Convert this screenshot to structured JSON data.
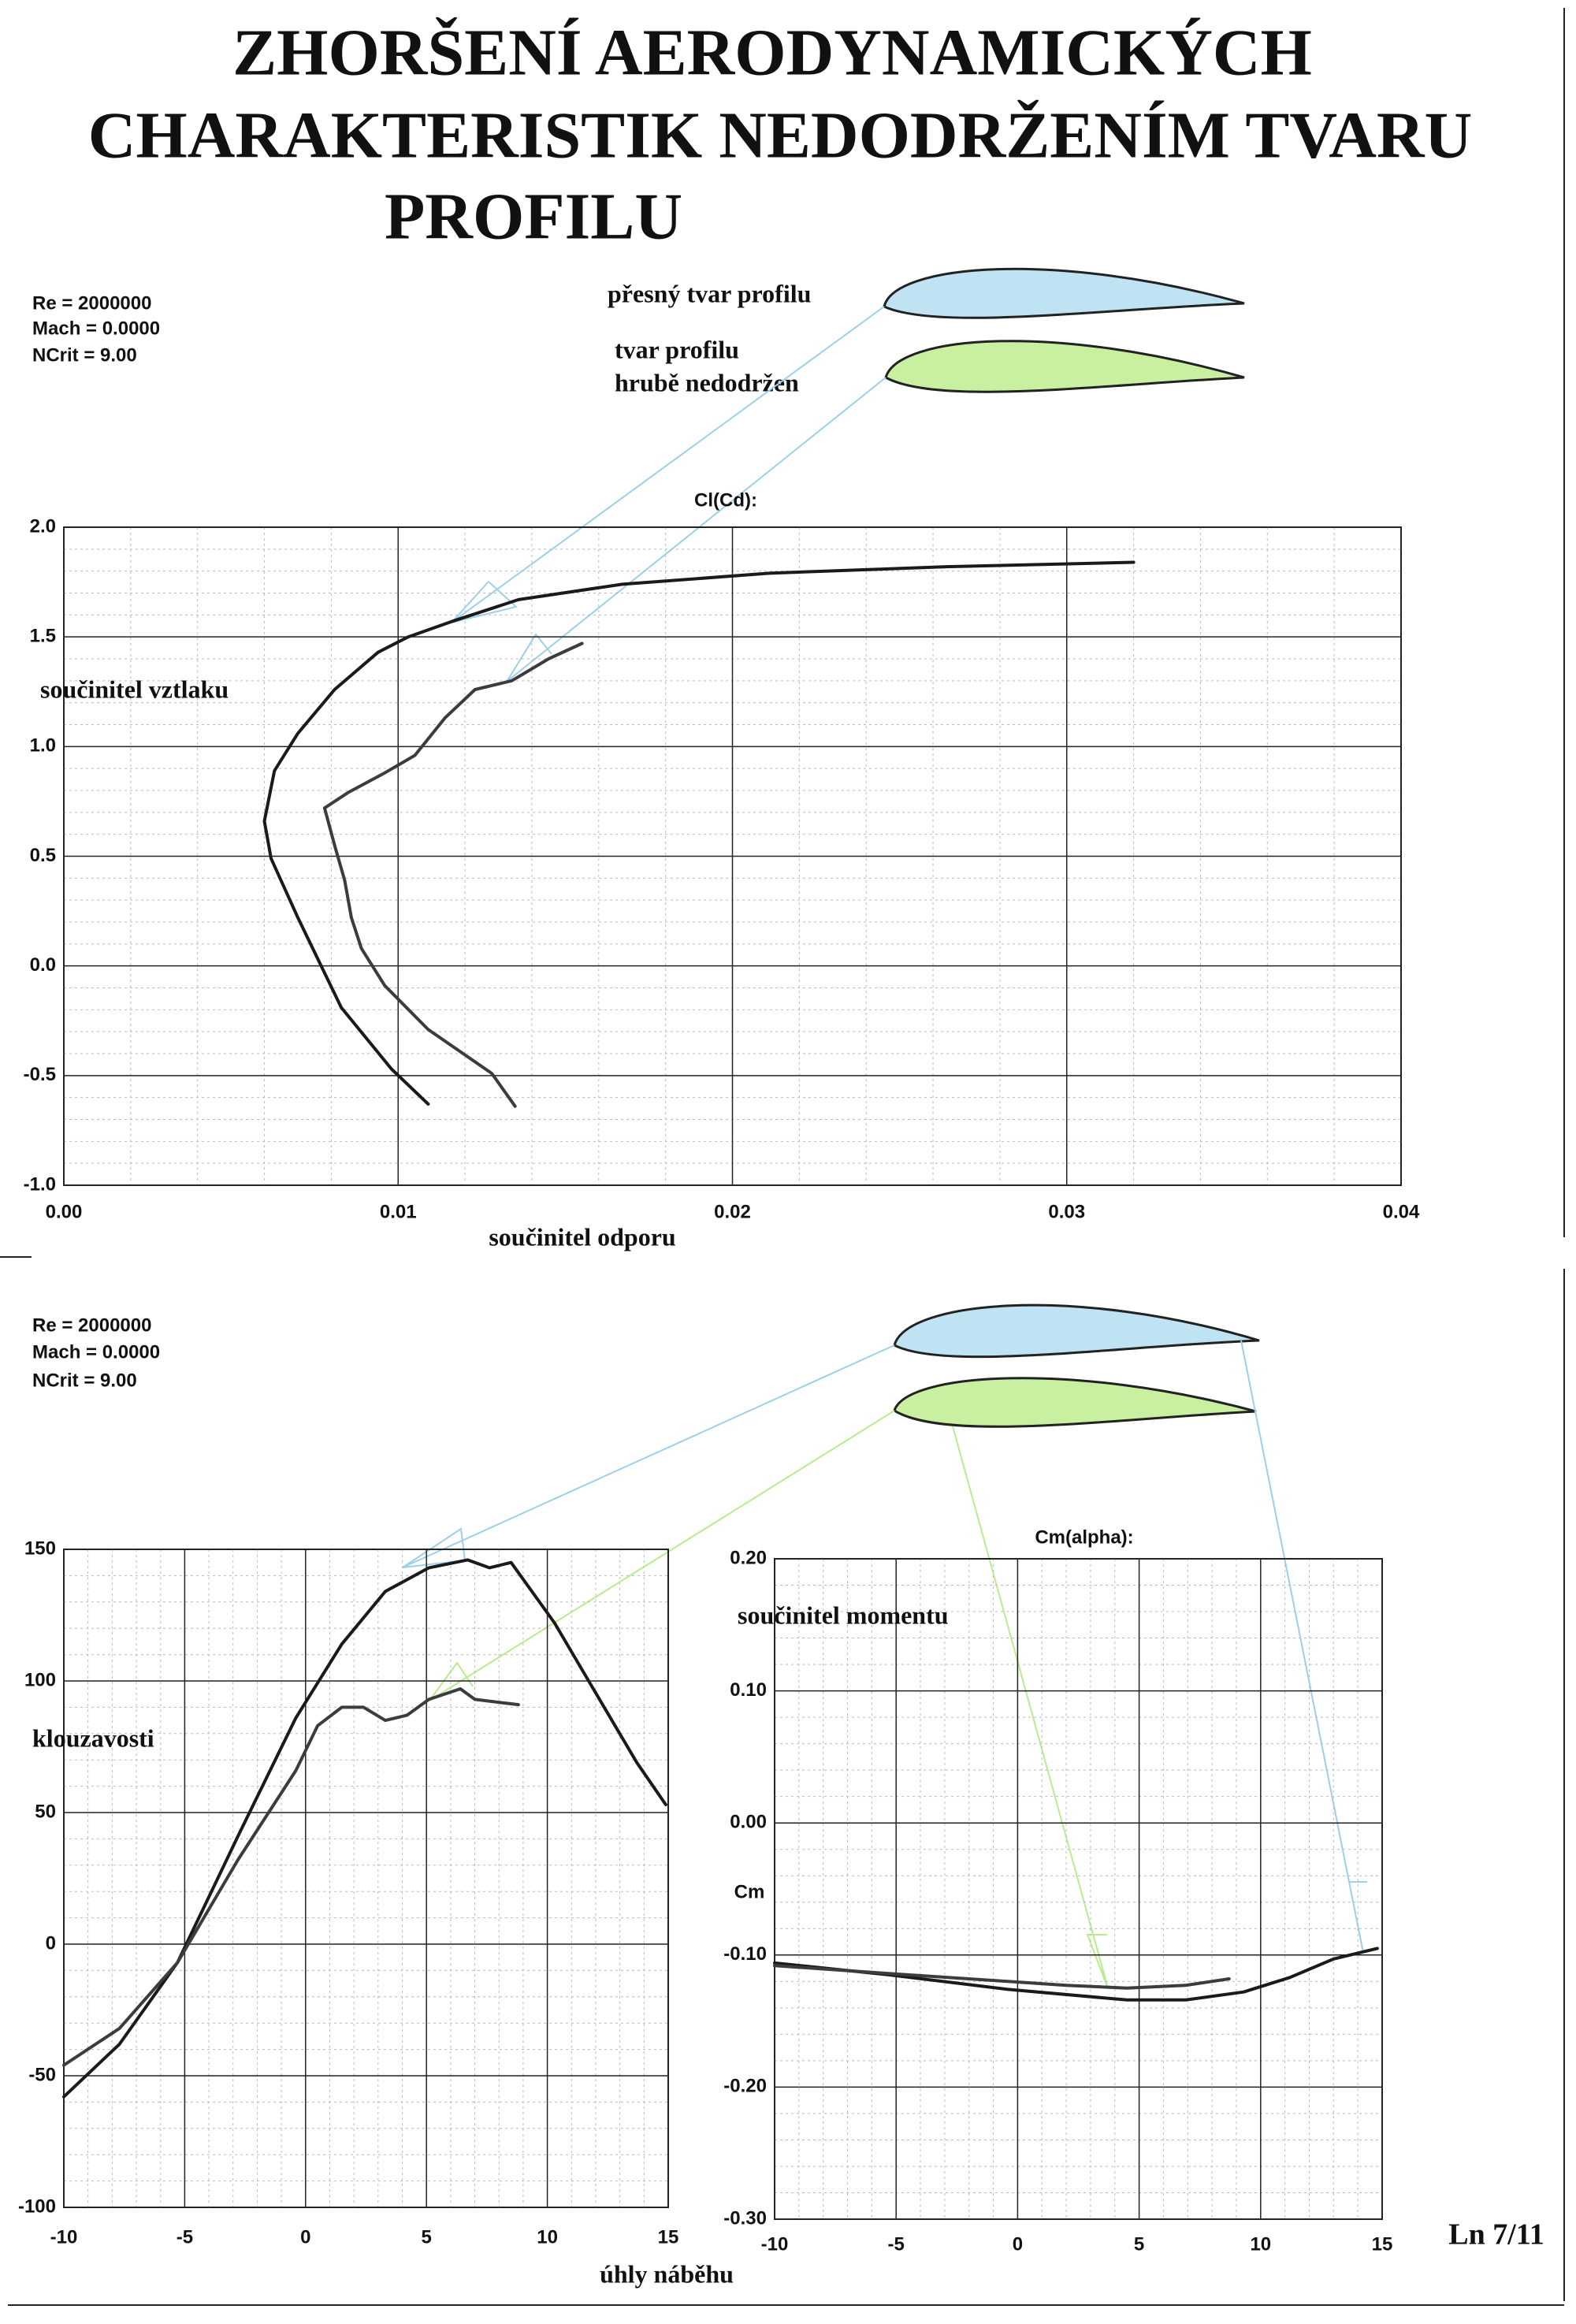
{
  "title": [
    "ZHORŠENÍ AERODYNAMICKÝCH",
    "CHARAKTERISTIK NEDODRŽENÍM TVARU",
    "PROFILU"
  ],
  "conditions": [
    [
      "Re = 2000000",
      "Mach = 0.0000",
      "NCrit = 9.00"
    ],
    [
      "Re = 2000000",
      "Mach = 0.0000",
      "NCrit = 9.00"
    ]
  ],
  "profile_labels": [
    [
      "přesný tvar profilu"
    ],
    [
      "tvar profilu",
      "hrubě nedodržen"
    ]
  ],
  "page_number": "Ln 7/11",
  "chart_data": [
    {
      "type": "line",
      "title": "Cl(Cd):",
      "xlabel": "součinitel odporu",
      "ylabel": "součinitel vztlaku",
      "xlim": [
        0,
        0.04
      ],
      "ylim": [
        -1,
        2
      ],
      "xticks": [
        {
          "value": 0,
          "label": "0.00"
        },
        0.01,
        0.02,
        0.03,
        0.04
      ],
      "yticks": [
        {
          "value": -1,
          "label": "-1.0"
        },
        -0.5,
        {
          "value": 0,
          "label": "0.0"
        },
        0.5,
        {
          "value": 1,
          "label": "1.0"
        },
        1.5,
        {
          "value": 2,
          "label": "2.0"
        }
      ],
      "grid": true,
      "series": [
        {
          "color": "#1a1a1a",
          "x": [
            0.0109,
            0.0098,
            0.0083,
            0.007,
            0.0062,
            0.006,
            0.0063,
            0.007,
            0.0081,
            0.0094,
            0.0103,
            0.0116,
            0.0136,
            0.0167,
            0.0211,
            0.0264,
            0.032
          ],
          "values": [
            -0.63,
            -0.47,
            -0.19,
            0.22,
            0.49,
            0.66,
            0.89,
            1.06,
            1.26,
            1.43,
            1.5,
            1.57,
            1.67,
            1.74,
            1.79,
            1.82,
            1.84
          ]
        },
        {
          "color": "#3c3c3c",
          "x": [
            0.0135,
            0.0128,
            0.0109,
            0.0096,
            0.0089,
            0.0086,
            0.0084,
            0.0081,
            0.0078,
            0.0085,
            0.0096,
            0.0105,
            0.0114,
            0.0123,
            0.0134,
            0.0145,
            0.0155
          ],
          "values": [
            -0.64,
            -0.49,
            -0.29,
            -0.09,
            0.08,
            0.22,
            0.39,
            0.55,
            0.72,
            0.79,
            0.88,
            0.96,
            1.13,
            1.26,
            1.3,
            1.4,
            1.47
          ]
        }
      ]
    },
    {
      "type": "line",
      "xlabel": "úhly náběhu",
      "ylabel": "klouzavosti",
      "xlim": [
        -10,
        15
      ],
      "ylim": [
        -100,
        150
      ],
      "xticks": [
        -10,
        -5,
        0,
        5,
        10,
        15
      ],
      "yticks": [
        -100,
        -50,
        0,
        50,
        100,
        150
      ],
      "grid": true,
      "series": [
        {
          "color": "#1a1a1a",
          "x": [
            -10.0,
            -7.7,
            -5.3,
            -2.8,
            -0.4,
            1.5,
            3.3,
            5.1,
            6.7,
            7.6,
            8.5,
            10.3,
            11.9,
            13.7,
            14.9
          ],
          "values": [
            -58,
            -38,
            -7,
            41,
            86,
            114,
            134,
            143,
            146,
            143,
            145,
            122,
            97,
            69,
            53
          ]
        },
        {
          "color": "#3c3c3c",
          "x": [
            -10.0,
            -7.7,
            -5.3,
            -2.8,
            -0.4,
            0.5,
            1.5,
            2.4,
            3.3,
            4.2,
            5.1,
            6.4,
            7.0,
            8.8
          ],
          "values": [
            -46,
            -32,
            -7,
            32,
            66,
            83,
            90,
            90,
            85,
            87,
            93,
            97,
            93,
            91
          ]
        }
      ]
    },
    {
      "type": "line",
      "title": "Cm(alpha):",
      "ylabel": "Cm",
      "annotation": "součinitel momentu",
      "xlim": [
        -10,
        15
      ],
      "ylim": [
        -0.3,
        0.2
      ],
      "xticks": [
        -10,
        -5,
        0,
        5,
        10,
        15
      ],
      "yticks": [
        {
          "value": -0.3,
          "label": "-0.30"
        },
        {
          "value": -0.2,
          "label": "-0.20"
        },
        {
          "value": -0.1,
          "label": "-0.10"
        },
        {
          "value": 0,
          "label": "0.00"
        },
        {
          "value": 0.1,
          "label": "0.10"
        },
        {
          "value": 0.2,
          "label": "0.20"
        }
      ],
      "grid": true,
      "series": [
        {
          "color": "#1a1a1a",
          "x": [
            -10.0,
            -5.3,
            -0.4,
            4.5,
            6.9,
            9.3,
            11.2,
            13.0,
            14.8
          ],
          "values": [
            -0.106,
            -0.115,
            -0.126,
            -0.134,
            -0.134,
            -0.128,
            -0.117,
            -0.103,
            -0.095
          ]
        },
        {
          "color": "#3c3c3c",
          "x": [
            -10.0,
            -5.3,
            -0.4,
            2.0,
            4.5,
            6.9,
            8.7
          ],
          "values": [
            -0.108,
            -0.114,
            -0.12,
            -0.123,
            -0.125,
            -0.123,
            -0.118
          ]
        }
      ]
    }
  ]
}
